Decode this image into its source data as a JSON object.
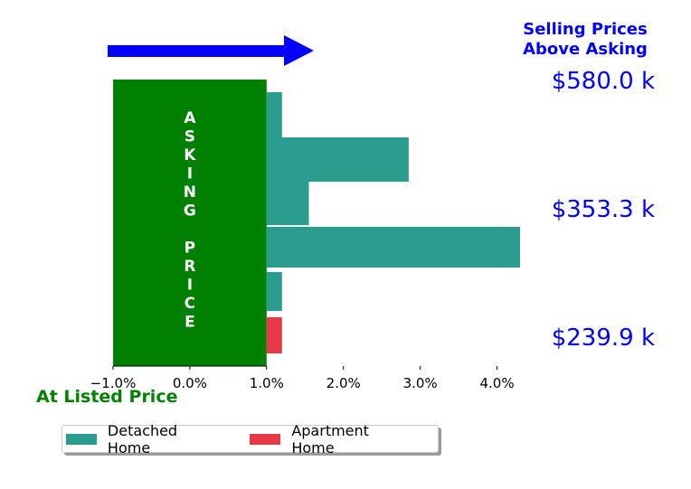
{
  "chart_data": {
    "type": "bar",
    "orientation": "horizontal",
    "series": [
      {
        "name": "Detached Home",
        "color": "#2a9d8f",
        "values": [
          1.2,
          2.85,
          1.55,
          4.3,
          1.2
        ]
      },
      {
        "name": "Apartment Home",
        "color": "#e63946",
        "values": [
          1.2
        ]
      }
    ],
    "bars_top_to_bottom": [
      {
        "series": "Detached Home",
        "value": 1.2
      },
      {
        "series": "Detached Home",
        "value": 2.85
      },
      {
        "series": "Detached Home",
        "value": 1.55
      },
      {
        "series": "Detached Home",
        "value": 4.3
      },
      {
        "series": "Detached Home",
        "value": 1.2
      },
      {
        "series": "Apartment Home",
        "value": 1.2
      }
    ],
    "xlim": [
      -1.0,
      4.3
    ],
    "xticks": [
      -1.0,
      0.0,
      1.0,
      2.0,
      3.0,
      4.0
    ],
    "xtick_labels": [
      "−1.0%",
      "0.0%",
      "1.0%",
      "2.0%",
      "3.0%",
      "4.0%"
    ],
    "asking_band": {
      "from": -1.0,
      "to": 1.0,
      "color": "#008000",
      "label_lines": [
        "A",
        "S",
        "K",
        "I",
        "N",
        "G",
        "",
        "P",
        "R",
        "I",
        "C",
        "E"
      ]
    },
    "price_labels": [
      "$580.0 k",
      "$353.3 k",
      "$239.9 k"
    ],
    "header_lines": [
      "Selling Prices",
      "Above Asking"
    ],
    "footer_label": "At Listed Price",
    "arrow_color": "#0000ff",
    "text_colors": {
      "header": "#0000ff",
      "prices": "#0000ff",
      "footer": "#008000"
    },
    "legend": {
      "placement": "bottom-left",
      "columns": 2
    },
    "grid": false
  }
}
